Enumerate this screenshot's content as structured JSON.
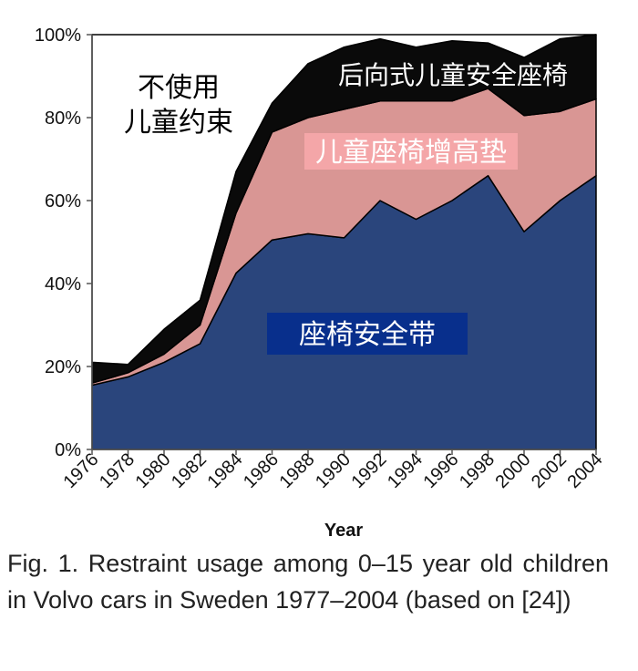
{
  "caption": "Fig. 1. Restraint usage among 0–15 year old children in Volvo cars in Sweden 1977–2004 (based on [24])",
  "chart_data": {
    "type": "area",
    "stacked": true,
    "xlabel": "Year",
    "ylabel": "",
    "ylim": [
      0,
      100
    ],
    "yticks": [
      "0%",
      "20%",
      "40%",
      "60%",
      "80%",
      "100%"
    ],
    "x": [
      1976,
      1978,
      1980,
      1982,
      1984,
      1986,
      1988,
      1990,
      1992,
      1994,
      1996,
      1998,
      2000,
      2002,
      2004
    ],
    "series": [
      {
        "name": "座椅安全带",
        "color": "#2a457c",
        "values": [
          15.5,
          17.5,
          21,
          25.5,
          42.5,
          50.5,
          52,
          51,
          60,
          55.5,
          60,
          66,
          52.5,
          60,
          66
        ]
      },
      {
        "name": "儿童座椅增高垫",
        "color": "#d99694",
        "values": [
          0.5,
          1,
          2,
          4.5,
          14.5,
          26,
          28,
          31,
          24,
          28.5,
          24,
          21,
          28,
          21.5,
          18.5
        ]
      },
      {
        "name": "后向式儿童安全座椅",
        "color": "#0a0a0a",
        "values": [
          5,
          2,
          6,
          6,
          10,
          7,
          13,
          15,
          15,
          13,
          14.5,
          11,
          14,
          17.5,
          15.5
        ]
      },
      {
        "name": "不使用儿童约束",
        "color": "#ffffff",
        "values": [
          79,
          79.5,
          71,
          64,
          33,
          16.5,
          7,
          3,
          1,
          3,
          1.5,
          2,
          5.5,
          1,
          0
        ]
      }
    ],
    "labels": {
      "none_line1": "不使用",
      "none_line2": "儿童约束",
      "rear_facing": "后向式儿童安全座椅",
      "booster": "儿童座椅增高垫",
      "belt": "座椅安全带"
    },
    "label_colors": {
      "booster_bg": "#f4a6a8",
      "belt_bg": "#082f8c"
    }
  }
}
